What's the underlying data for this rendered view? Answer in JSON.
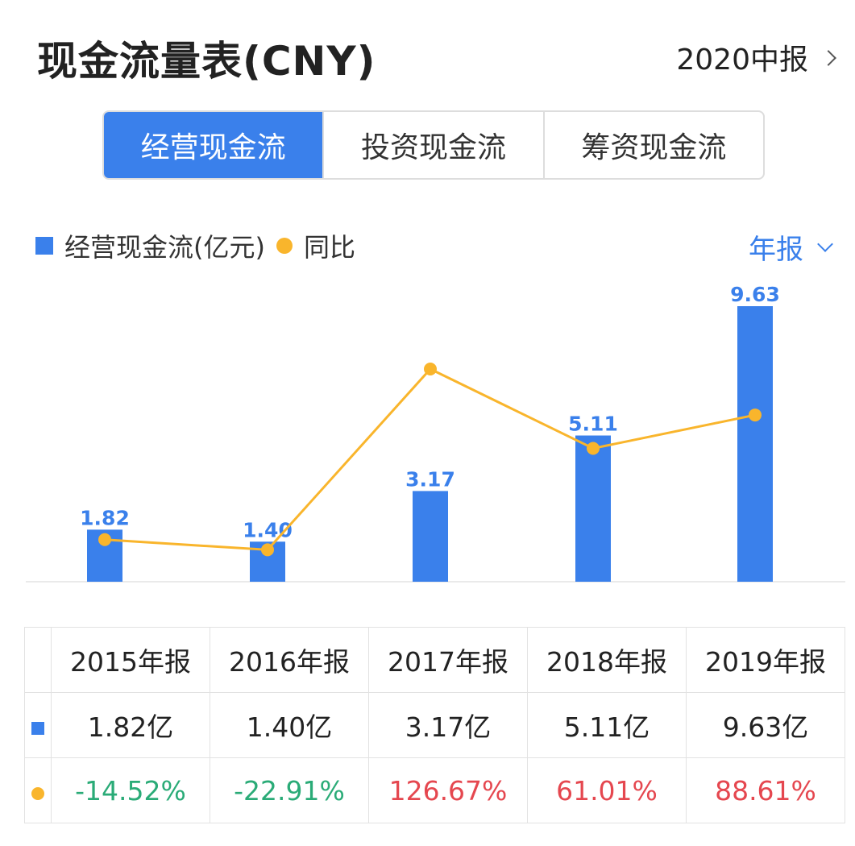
{
  "header": {
    "title": "现金流量表(CNY)",
    "report_label": "2020中报"
  },
  "tabs": [
    {
      "label": "经营现金流",
      "active": true
    },
    {
      "label": "投资现金流",
      "active": false
    },
    {
      "label": "筹资现金流",
      "active": false
    }
  ],
  "legend": {
    "bar_label": "经营现金流(亿元)",
    "line_label": "同比"
  },
  "period_selector": "年报",
  "colors": {
    "accent": "#3a80eb",
    "line": "#f9b52c",
    "positive": "#e5474f",
    "negative": "#2aab77"
  },
  "chart_data": {
    "type": "bar",
    "categories": [
      "2015年报",
      "2016年报",
      "2017年报",
      "2018年报",
      "2019年报"
    ],
    "series": [
      {
        "name": "经营现金流(亿元)",
        "type": "bar",
        "values": [
          1.82,
          1.4,
          3.17,
          5.11,
          9.63
        ],
        "labels": [
          "1.82",
          "1.40",
          "3.17",
          "5.11",
          "9.63"
        ]
      },
      {
        "name": "同比",
        "type": "line",
        "values": [
          -14.52,
          -22.91,
          126.67,
          61.01,
          88.61
        ]
      }
    ],
    "grid": false
  },
  "table": {
    "headers": [
      "2015年报",
      "2016年报",
      "2017年报",
      "2018年报",
      "2019年报"
    ],
    "values": [
      "1.82亿",
      "1.40亿",
      "3.17亿",
      "5.11亿",
      "9.63亿"
    ],
    "yoy": [
      "-14.52%",
      "-22.91%",
      "126.67%",
      "61.01%",
      "88.61%"
    ]
  }
}
